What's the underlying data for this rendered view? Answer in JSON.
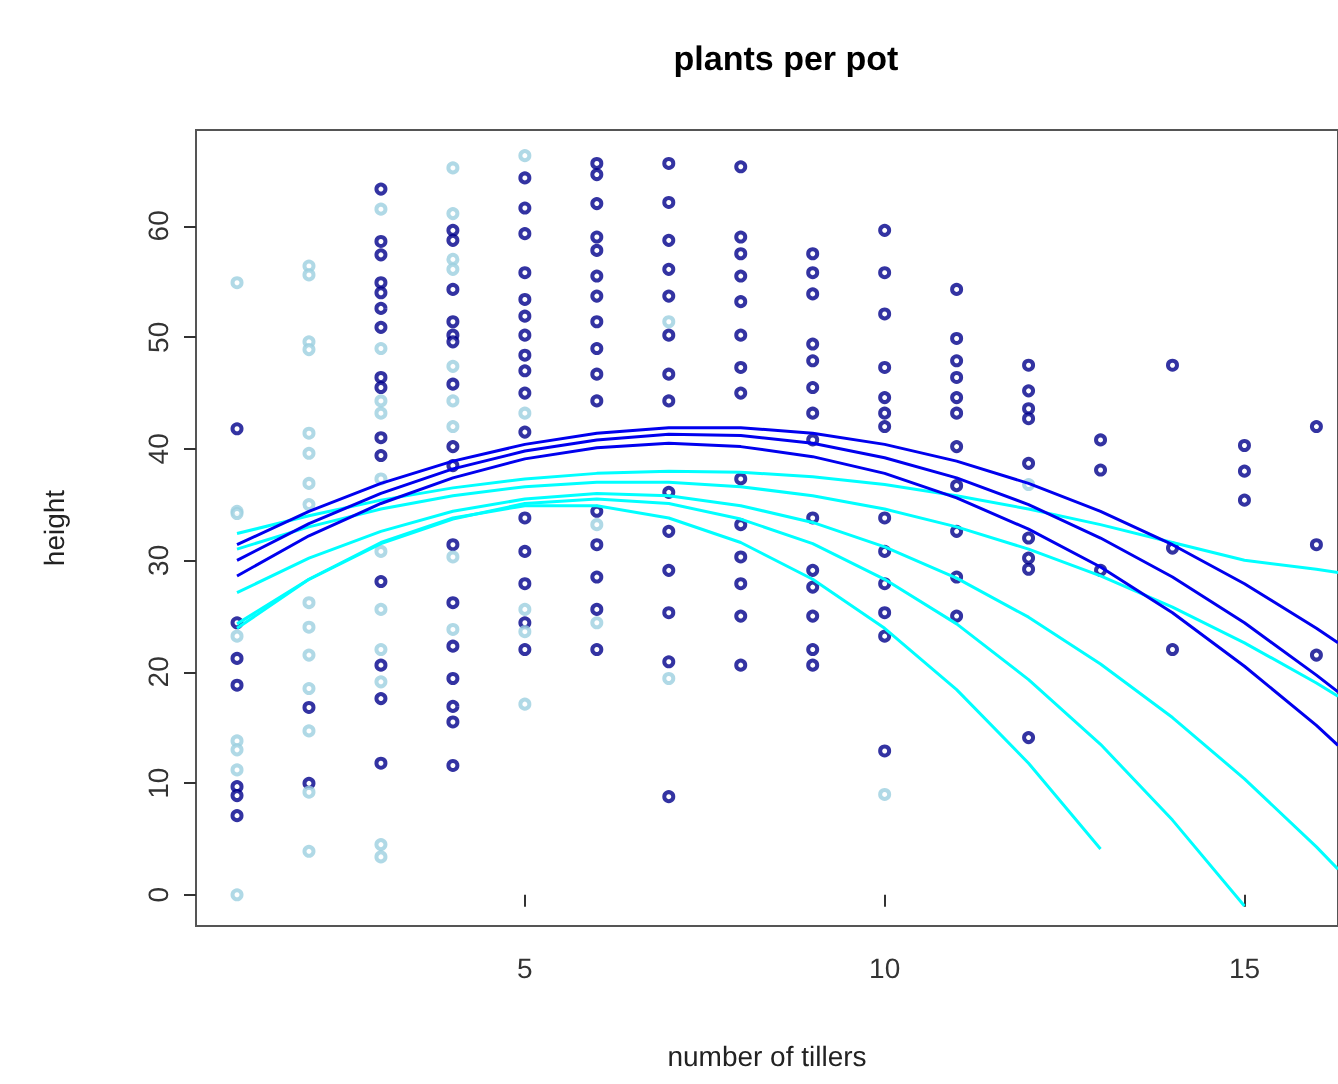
{
  "chart_data": {
    "type": "scatter",
    "title": "plants per pot",
    "xlabel": "number of tillers",
    "ylabel": "height",
    "xlim": [
      0.43,
      16.3
    ],
    "ylim": [
      -2.8,
      68.6
    ],
    "xticks": [
      5,
      10,
      15
    ],
    "yticks": [
      0,
      10,
      20,
      30,
      40,
      50,
      60
    ],
    "grid": false,
    "marker": "circle",
    "series": [
      {
        "color": "#00008b",
        "x": [
          1,
          1,
          1,
          1,
          1,
          1,
          1,
          2,
          2,
          3,
          3,
          3,
          3,
          3,
          3,
          3,
          3,
          3,
          3,
          3,
          3,
          3,
          3,
          3,
          4,
          4,
          4,
          4,
          4,
          4,
          4,
          4,
          4,
          4,
          4,
          4,
          4,
          4,
          4,
          4,
          5,
          5,
          5,
          5,
          5,
          5,
          5,
          5,
          5,
          5,
          5,
          5,
          5,
          5,
          5,
          5,
          6,
          6,
          6,
          6,
          6,
          6,
          6,
          6,
          6,
          6,
          6,
          6,
          6,
          6,
          6,
          6,
          7,
          7,
          7,
          7,
          7,
          7,
          7,
          7,
          7,
          7,
          7,
          7,
          7,
          7,
          8,
          8,
          8,
          8,
          8,
          8,
          8,
          8,
          8,
          8,
          8,
          8,
          8,
          8,
          9,
          9,
          9,
          9,
          9,
          9,
          9,
          9,
          9,
          9,
          9,
          9,
          9,
          9,
          10,
          10,
          10,
          10,
          10,
          10,
          10,
          10,
          10,
          10,
          10,
          10,
          10,
          11,
          11,
          11,
          11,
          11,
          11,
          11,
          11,
          11,
          11,
          11,
          12,
          12,
          12,
          12,
          12,
          12,
          12,
          12,
          12,
          13,
          13,
          13,
          14,
          14,
          14,
          15,
          15,
          15,
          16,
          16,
          16
        ],
        "values": [
          41.8,
          24.4,
          21.2,
          18.8,
          9.7,
          8.9,
          7.1,
          16.8,
          10.0,
          63.3,
          58.6,
          57.4,
          54.9,
          54.0,
          52.6,
          50.9,
          46.4,
          45.5,
          41.0,
          39.4,
          28.1,
          20.6,
          17.6,
          11.8,
          59.6,
          58.7,
          54.3,
          51.4,
          50.2,
          49.6,
          45.8,
          40.2,
          38.5,
          31.4,
          26.2,
          22.3,
          19.4,
          16.9,
          15.5,
          11.6,
          64.3,
          61.6,
          59.3,
          55.8,
          53.4,
          51.9,
          50.2,
          48.4,
          47.0,
          45.0,
          41.5,
          33.8,
          30.8,
          27.9,
          24.4,
          22.0,
          65.6,
          64.6,
          62.0,
          59.0,
          57.8,
          55.5,
          53.7,
          51.4,
          49.0,
          46.7,
          44.3,
          34.4,
          31.4,
          28.5,
          25.6,
          22.0,
          65.6,
          62.1,
          58.7,
          56.1,
          53.7,
          50.2,
          46.7,
          44.3,
          36.1,
          32.6,
          29.1,
          25.3,
          20.9,
          8.8,
          65.3,
          59.0,
          57.5,
          55.5,
          53.2,
          50.2,
          47.3,
          45.0,
          37.3,
          33.2,
          30.3,
          27.9,
          25.0,
          20.6,
          57.5,
          55.8,
          53.9,
          49.4,
          47.9,
          45.5,
          43.2,
          40.8,
          33.8,
          29.1,
          27.6,
          25.0,
          22.0,
          20.6,
          59.6,
          55.8,
          52.1,
          47.3,
          44.6,
          43.2,
          42.0,
          33.8,
          30.8,
          27.9,
          25.3,
          23.2,
          12.9,
          54.3,
          49.9,
          47.9,
          46.4,
          44.6,
          43.2,
          40.2,
          36.7,
          32.6,
          28.5,
          25.0,
          47.5,
          45.2,
          43.6,
          42.7,
          38.7,
          32.0,
          30.2,
          29.2,
          14.1,
          40.8,
          38.1,
          29.1,
          47.5,
          31.1,
          22.0,
          40.3,
          38.0,
          35.4,
          42.0,
          31.4,
          21.5
        ]
      },
      {
        "color": "#9ccfe0",
        "x": [
          1,
          1,
          1,
          1,
          1,
          1,
          1,
          1,
          2,
          2,
          2,
          2,
          2,
          2,
          2,
          2,
          2,
          2,
          2,
          2,
          2,
          2,
          2,
          3,
          3,
          3,
          3,
          3,
          3,
          3,
          3,
          3,
          3,
          3,
          4,
          4,
          4,
          4,
          4,
          4,
          4,
          4,
          4,
          5,
          5,
          5,
          5,
          5,
          6,
          6,
          7,
          7,
          10,
          12
        ],
        "values": [
          54.9,
          34.4,
          34.2,
          23.2,
          13.8,
          13.0,
          11.2,
          0.0,
          56.4,
          55.6,
          49.6,
          48.9,
          41.4,
          39.6,
          36.9,
          35.0,
          26.2,
          24.0,
          21.5,
          18.5,
          14.7,
          9.2,
          3.9,
          61.5,
          49.0,
          44.3,
          43.2,
          37.3,
          30.8,
          25.6,
          22.0,
          19.1,
          4.5,
          3.4,
          65.2,
          61.1,
          57.0,
          56.1,
          47.4,
          44.3,
          42.0,
          30.3,
          23.8,
          66.3,
          43.2,
          25.6,
          23.6,
          17.1,
          33.2,
          24.4,
          51.4,
          19.4,
          9.0,
          36.8
        ]
      },
      {
        "type": "line",
        "marker": "none",
        "color": "#00ffff",
        "x": [
          1,
          2,
          3,
          4,
          5,
          6,
          7,
          8,
          9,
          10,
          11,
          12,
          13,
          14,
          15,
          16,
          16.3
        ],
        "values": [
          32.4,
          34.0,
          35.4,
          36.5,
          37.3,
          37.8,
          38.0,
          37.9,
          37.5,
          36.8,
          35.8,
          34.6,
          33.2,
          31.6,
          30.0,
          29.2,
          28.9
        ]
      },
      {
        "type": "line",
        "marker": "none",
        "color": "#00ffff",
        "x": [
          1,
          2,
          3,
          4,
          5,
          6,
          7,
          8,
          9,
          10,
          11,
          12,
          13,
          14,
          15,
          16,
          16.3
        ],
        "values": [
          31.0,
          33.0,
          34.6,
          35.8,
          36.6,
          37.0,
          37.0,
          36.6,
          35.8,
          34.6,
          33.0,
          31.0,
          28.6,
          25.8,
          22.6,
          19.0,
          17.8
        ]
      },
      {
        "type": "line",
        "marker": "none",
        "color": "#00ffff",
        "x": [
          1,
          2,
          3,
          4,
          5,
          6,
          7,
          8,
          9,
          10,
          11,
          12,
          13,
          14,
          15,
          16,
          16.3
        ],
        "values": [
          27.1,
          30.2,
          32.6,
          34.4,
          35.5,
          36.0,
          35.8,
          34.9,
          33.4,
          31.2,
          28.4,
          24.9,
          20.7,
          15.9,
          10.4,
          4.3,
          2.3
        ]
      },
      {
        "type": "line",
        "marker": "none",
        "color": "#00ffff",
        "x": [
          1,
          2,
          3,
          4,
          5,
          6,
          7,
          8,
          9,
          10,
          11,
          12,
          13,
          14,
          15
        ],
        "values": [
          24.3,
          28.3,
          31.5,
          33.7,
          35.1,
          35.5,
          35.1,
          33.7,
          31.5,
          28.3,
          24.3,
          19.3,
          13.5,
          6.7,
          -1.0
        ]
      },
      {
        "type": "line",
        "marker": "none",
        "color": "#00ffff",
        "x": [
          1,
          2,
          3,
          4,
          5,
          6,
          7,
          8,
          9,
          10,
          11,
          12,
          13
        ],
        "values": [
          23.9,
          28.3,
          31.6,
          33.8,
          34.9,
          34.9,
          33.8,
          31.6,
          28.3,
          23.9,
          18.4,
          11.8,
          4.1
        ]
      },
      {
        "type": "line",
        "marker": "none",
        "color": "#0000ee",
        "x": [
          1,
          2,
          3,
          4,
          5,
          6,
          7,
          8,
          9,
          10,
          11,
          12,
          13,
          14,
          15,
          16,
          16.3
        ],
        "values": [
          31.4,
          34.4,
          36.9,
          38.9,
          40.4,
          41.4,
          41.9,
          41.9,
          41.4,
          40.4,
          38.9,
          36.9,
          34.4,
          31.4,
          27.9,
          23.9,
          22.6
        ]
      },
      {
        "type": "line",
        "marker": "none",
        "color": "#0000ee",
        "x": [
          1,
          2,
          3,
          4,
          5,
          6,
          7,
          8,
          9,
          10,
          11,
          12,
          13,
          14,
          15,
          16,
          16.3
        ],
        "values": [
          30.0,
          33.3,
          36.0,
          38.2,
          39.8,
          40.8,
          41.3,
          41.2,
          40.5,
          39.2,
          37.4,
          35.0,
          32.0,
          28.5,
          24.4,
          19.7,
          18.2
        ]
      },
      {
        "type": "line",
        "marker": "none",
        "color": "#0000ee",
        "x": [
          1,
          2,
          3,
          4,
          5,
          6,
          7,
          8,
          9,
          10,
          11,
          12,
          13,
          14,
          15,
          16,
          16.3
        ],
        "values": [
          28.6,
          32.2,
          35.1,
          37.4,
          39.1,
          40.1,
          40.5,
          40.2,
          39.3,
          37.8,
          35.6,
          32.8,
          29.4,
          25.3,
          20.5,
          15.2,
          13.4
        ]
      }
    ]
  }
}
